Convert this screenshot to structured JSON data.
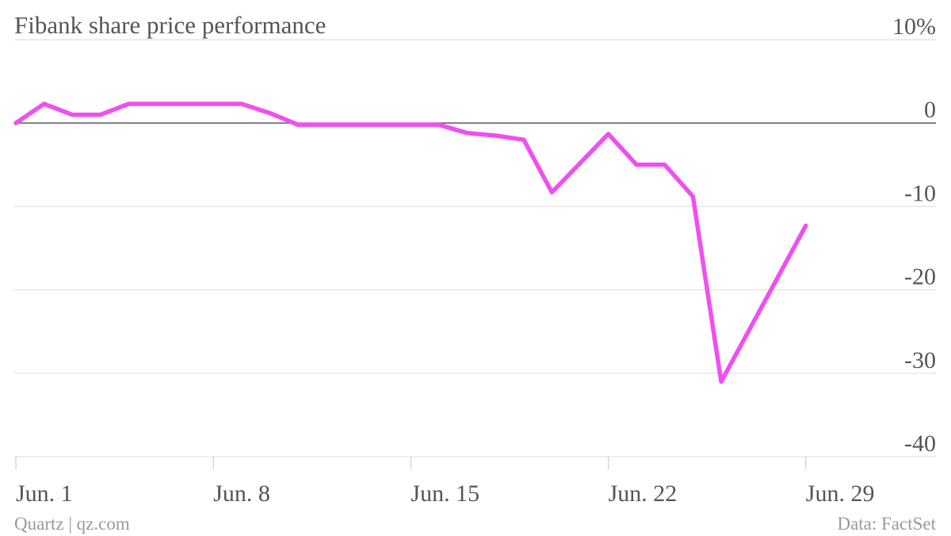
{
  "chart_data": {
    "type": "line",
    "title": "Fibank share price performance",
    "y_unit_label": "10%",
    "source": "Data: FactSet",
    "credit": "Quartz | qz.com",
    "ylim": [
      -40,
      10
    ],
    "yticks": [
      10,
      0,
      -10,
      -20,
      -30,
      -40
    ],
    "ytick_labels": [
      "10%",
      "0",
      "-10",
      "-20",
      "-30",
      "-40"
    ],
    "xlim": [
      "2015-06-01",
      "2015-07-03"
    ],
    "xticks": [
      {
        "date": "2015-06-01",
        "label": "Jun. 1"
      },
      {
        "date": "2015-06-08",
        "label": "Jun. 8"
      },
      {
        "date": "2015-06-15",
        "label": "Jun. 15"
      },
      {
        "date": "2015-06-22",
        "label": "Jun. 22"
      },
      {
        "date": "2015-06-29",
        "label": "Jun. 29"
      }
    ],
    "grid": true,
    "line_color": "#f04ff0",
    "series": [
      {
        "points": [
          {
            "x": "2015-06-01",
            "y": 0.0
          },
          {
            "x": "2015-06-02",
            "y": 2.3
          },
          {
            "x": "2015-06-03",
            "y": 1.0
          },
          {
            "x": "2015-06-04",
            "y": 1.0
          },
          {
            "x": "2015-06-05",
            "y": 2.3
          },
          {
            "x": "2015-06-06",
            "y": 2.3
          },
          {
            "x": "2015-06-07",
            "y": 2.3
          },
          {
            "x": "2015-06-08",
            "y": 2.3
          },
          {
            "x": "2015-06-09",
            "y": 2.3
          },
          {
            "x": "2015-06-10",
            "y": 1.2
          },
          {
            "x": "2015-06-11",
            "y": -0.2
          },
          {
            "x": "2015-06-12",
            "y": -0.2
          },
          {
            "x": "2015-06-13",
            "y": -0.2
          },
          {
            "x": "2015-06-14",
            "y": -0.2
          },
          {
            "x": "2015-06-15",
            "y": -0.2
          },
          {
            "x": "2015-06-16",
            "y": -0.2
          },
          {
            "x": "2015-06-17",
            "y": -1.2
          },
          {
            "x": "2015-06-18",
            "y": -1.5
          },
          {
            "x": "2015-06-19",
            "y": -2.0
          },
          {
            "x": "2015-06-20",
            "y": -8.3
          },
          {
            "x": "2015-06-22",
            "y": -1.3
          },
          {
            "x": "2015-06-23",
            "y": -5.0
          },
          {
            "x": "2015-06-24",
            "y": -5.0
          },
          {
            "x": "2015-06-25",
            "y": -8.8
          },
          {
            "x": "2015-06-26",
            "y": -31.0
          },
          {
            "x": "2015-06-29",
            "y": -12.3
          }
        ]
      }
    ]
  }
}
